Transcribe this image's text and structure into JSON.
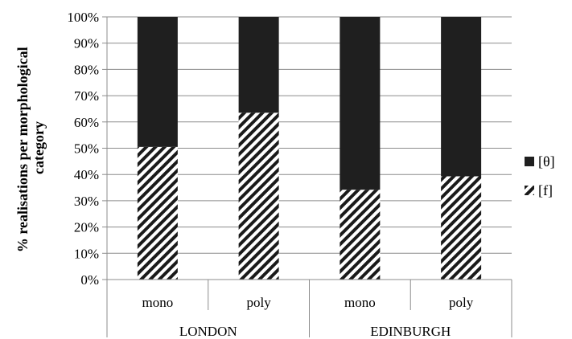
{
  "chart_data": {
    "type": "bar",
    "stacked": true,
    "groups": [
      "LONDON",
      "EDINBURGH"
    ],
    "categories": [
      "mono",
      "poly",
      "mono",
      "poly"
    ],
    "category_group": [
      0,
      0,
      1,
      1
    ],
    "series": [
      {
        "name": "[f]",
        "values": [
          50.5,
          63.5,
          34.2,
          39.3
        ],
        "color": "#000000",
        "pattern": "diagonal-stripes"
      },
      {
        "name": "[θ]",
        "values": [
          49.5,
          36.5,
          65.8,
          60.7
        ],
        "color": "#1f1f1f"
      }
    ],
    "ylabel_lines": [
      "% realisations per morphological",
      "category"
    ],
    "ylim": [
      0,
      100
    ],
    "ytick_step": 10,
    "ytick_suffix": "%",
    "grid": true,
    "legend_order": [
      1,
      0
    ],
    "legend_position": "right"
  }
}
